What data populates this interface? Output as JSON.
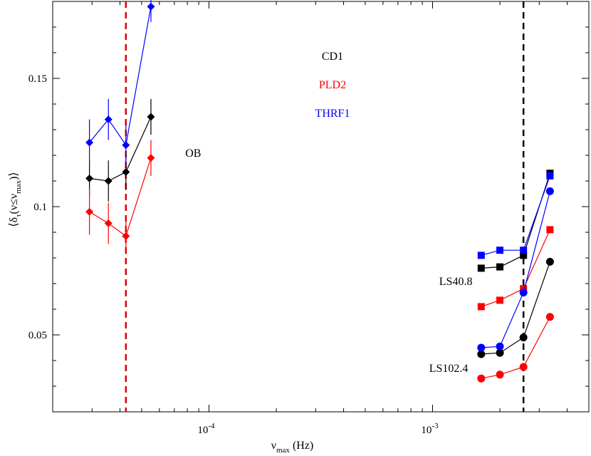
{
  "chart_data": {
    "type": "scatter",
    "title": "",
    "xlabel": {
      "main": "ν",
      "sub": "max",
      "suffix": " (Hz)"
    },
    "ylabel": {
      "open": "⟨δ",
      "sub1": "τ",
      "mid": "(ν≤ν",
      "sub2": "max",
      "close": ")⟩"
    },
    "x_scale": "log",
    "xlim": [
      2e-05,
      0.005
    ],
    "ylim": [
      0.02,
      0.18
    ],
    "x_ticks": [
      {
        "value": 0.0001,
        "base": "10",
        "exp": "-4"
      },
      {
        "value": 0.001,
        "base": "10",
        "exp": "-3"
      }
    ],
    "y_ticks": [
      {
        "value": 0.05,
        "label": "0.05"
      },
      {
        "value": 0.1,
        "label": "0.1"
      },
      {
        "value": 0.15,
        "label": "0.15"
      }
    ],
    "vlines": [
      {
        "x": 4.25e-05,
        "color": "#dd0000",
        "style": "dashed"
      },
      {
        "x": 0.00255,
        "color": "#000000",
        "style": "dashed"
      }
    ],
    "legend": [
      {
        "label": "CD1",
        "color": "#000000"
      },
      {
        "label": "PLD2",
        "color": "#ff0000"
      },
      {
        "label": "THRF1",
        "color": "#0000ff"
      }
    ],
    "series": [
      {
        "name": "OB CD1",
        "color": "#000000",
        "marker": "diamond",
        "x": [
          2.92e-05,
          3.55e-05,
          4.25e-05,
          5.5e-05
        ],
        "y": [
          0.111,
          0.11,
          0.1135,
          0.135
        ],
        "err": [
          0.007,
          0.008,
          0.007,
          0.007
        ]
      },
      {
        "name": "OB PLD2",
        "color": "#ff0000",
        "marker": "diamond",
        "x": [
          2.92e-05,
          3.55e-05,
          4.25e-05,
          5.5e-05
        ],
        "y": [
          0.098,
          0.0935,
          0.0885,
          0.119
        ],
        "err": [
          0.009,
          0.008,
          0.007,
          0.007
        ]
      },
      {
        "name": "OB THRF1",
        "color": "#0000ff",
        "marker": "diamond",
        "x": [
          2.92e-05,
          3.55e-05,
          4.25e-05,
          5.5e-05
        ],
        "y": [
          0.125,
          0.134,
          0.124,
          0.178
        ],
        "err": [
          0.009,
          0.008,
          0.008,
          0.006
        ]
      },
      {
        "name": "LS40.8 CD1",
        "color": "#000000",
        "marker": "square",
        "x": [
          0.00165,
          0.002,
          0.00255,
          0.00335
        ],
        "y": [
          0.076,
          0.0765,
          0.081,
          0.113
        ]
      },
      {
        "name": "LS40.8 PLD2",
        "color": "#ff0000",
        "marker": "square",
        "x": [
          0.00165,
          0.002,
          0.00255,
          0.00335
        ],
        "y": [
          0.061,
          0.0635,
          0.068,
          0.091
        ]
      },
      {
        "name": "LS40.8 THRF1",
        "color": "#0000ff",
        "marker": "square",
        "x": [
          0.00165,
          0.002,
          0.00255,
          0.00335
        ],
        "y": [
          0.081,
          0.083,
          0.083,
          0.112
        ]
      },
      {
        "name": "LS102.4 CD1",
        "color": "#000000",
        "marker": "circle",
        "x": [
          0.00165,
          0.002,
          0.00255,
          0.00335
        ],
        "y": [
          0.0425,
          0.043,
          0.049,
          0.0785
        ]
      },
      {
        "name": "LS102.4 PLD2",
        "color": "#ff0000",
        "marker": "circle",
        "x": [
          0.00165,
          0.002,
          0.00255,
          0.00335
        ],
        "y": [
          0.033,
          0.0345,
          0.0375,
          0.057
        ]
      },
      {
        "name": "LS102.4 THRF1",
        "color": "#0000ff",
        "marker": "circle",
        "x": [
          0.00165,
          0.002,
          0.00255,
          0.00335
        ],
        "y": [
          0.045,
          0.0455,
          0.0665,
          0.106
        ]
      }
    ],
    "annotations": [
      {
        "text": "OB",
        "x": 8.5e-05,
        "y": 0.1195
      },
      {
        "text": "LS40.8",
        "x": 0.00127,
        "y": 0.0695
      },
      {
        "text": "LS102.4",
        "x": 0.00118,
        "y": 0.0355
      }
    ]
  }
}
